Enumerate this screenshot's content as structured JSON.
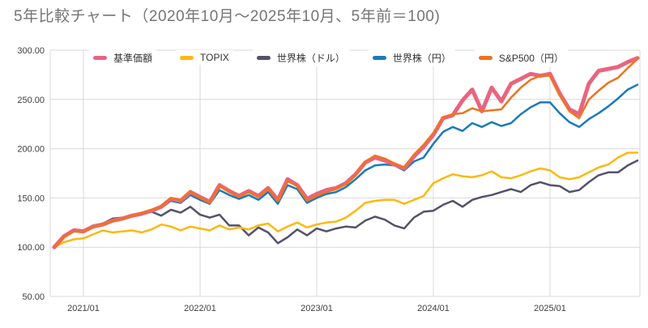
{
  "title": "5年比較チャート（2020年10月～2025年10月、5年前＝100)",
  "chart_data": {
    "type": "line",
    "title": "5年比較チャート（2020年10月～2025年10月、5年前＝100)",
    "x_start": "2020/10",
    "x_end": "2025/10",
    "x_frequency": "monthly",
    "base_value_note": "5年前＝100",
    "ylim": [
      50,
      300
    ],
    "grid": true,
    "legend_position": "top",
    "y_ticks": [
      {
        "v": 300,
        "label": "300.00"
      },
      {
        "v": 250,
        "label": "250.00"
      },
      {
        "v": 200,
        "label": "200.00"
      },
      {
        "v": 150,
        "label": "150.00"
      },
      {
        "v": 100,
        "label": "100.00"
      },
      {
        "v": 50,
        "label": "50.00"
      }
    ],
    "x_ticks": [
      {
        "month_index": 3,
        "label": "2021/01"
      },
      {
        "month_index": 15,
        "label": "2022/01"
      },
      {
        "month_index": 27,
        "label": "2023/01"
      },
      {
        "month_index": 39,
        "label": "2024/01"
      },
      {
        "month_index": 51,
        "label": "2025/01"
      }
    ],
    "series": [
      {
        "id": "world-usd",
        "label": "世界株（ドル）",
        "color": "#53526a",
        "line_width": 2.5,
        "values": [
          100,
          112,
          118,
          117,
          121,
          124,
          129,
          130,
          132,
          134,
          136,
          132,
          138,
          135,
          141,
          133,
          130,
          133,
          122,
          122,
          112,
          120,
          115,
          104,
          110,
          118,
          112,
          119,
          116,
          119,
          121,
          120,
          127,
          131,
          128,
          122,
          119,
          130,
          136,
          137,
          143,
          147,
          141,
          148,
          151,
          153,
          156,
          159,
          156,
          163,
          166,
          163,
          162,
          156,
          158,
          166,
          173,
          176,
          176,
          183,
          188
        ]
      },
      {
        "id": "topix",
        "label": "TOPIX",
        "color": "#fdb80f",
        "line_width": 2.5,
        "values": [
          100,
          105,
          108,
          109,
          113,
          117,
          115,
          116,
          117,
          115,
          118,
          123,
          121,
          117,
          121,
          119,
          117,
          122,
          118,
          120,
          118,
          122,
          124,
          116,
          121,
          125,
          120,
          123,
          125,
          126,
          130,
          137,
          145,
          147,
          148,
          148,
          144,
          148,
          152,
          165,
          170,
          174,
          172,
          171,
          173,
          177,
          171,
          170,
          173,
          177,
          180,
          178,
          171,
          169,
          171,
          176,
          181,
          184,
          191,
          196,
          196
        ]
      },
      {
        "id": "world-jpy",
        "label": "世界株（円）",
        "color": "#1b7ab8",
        "line_width": 2.5,
        "values": [
          100,
          112,
          117,
          117,
          122,
          124,
          128,
          130,
          132,
          134,
          137,
          140,
          147,
          145,
          153,
          148,
          144,
          158,
          153,
          149,
          153,
          148,
          156,
          144,
          163,
          159,
          145,
          150,
          154,
          156,
          161,
          169,
          178,
          183,
          184,
          183,
          178,
          187,
          191,
          205,
          217,
          222,
          218,
          226,
          222,
          227,
          223,
          226,
          235,
          242,
          247,
          247,
          236,
          227,
          222,
          230,
          236,
          243,
          251,
          260,
          265
        ]
      },
      {
        "id": "fund",
        "label": "基準価額",
        "color": "#e8657e",
        "line_width": 5,
        "values": [
          100,
          111,
          117,
          116,
          121,
          123,
          127,
          129,
          132,
          134,
          137,
          141,
          149,
          147,
          156,
          151,
          146,
          163,
          157,
          152,
          157,
          152,
          160,
          148,
          169,
          163,
          149,
          154,
          158,
          160,
          165,
          174,
          186,
          191,
          188,
          184,
          180,
          192,
          202,
          214,
          231,
          234,
          249,
          260,
          238,
          262,
          248,
          266,
          271,
          276,
          274,
          276,
          256,
          240,
          235,
          266,
          279,
          281,
          283,
          288,
          292
        ]
      },
      {
        "id": "sp500-jpy",
        "label": "S&P500（円）",
        "color": "#f0731c",
        "line_width": 2.5,
        "values": [
          100,
          110,
          116,
          116,
          120,
          123,
          127,
          129,
          132,
          135,
          138,
          141,
          150,
          148,
          157,
          150,
          145,
          162,
          156,
          151,
          156,
          151,
          159,
          147,
          167,
          162,
          147,
          152,
          156,
          159,
          164,
          173,
          187,
          193,
          190,
          185,
          181,
          194,
          204,
          216,
          232,
          235,
          236,
          241,
          238,
          239,
          240,
          252,
          262,
          270,
          274,
          274,
          254,
          238,
          231,
          250,
          259,
          267,
          272,
          282,
          291
        ]
      }
    ],
    "legend_order": [
      "fund",
      "topix",
      "world-usd",
      "world-jpy",
      "sp500-jpy"
    ]
  }
}
